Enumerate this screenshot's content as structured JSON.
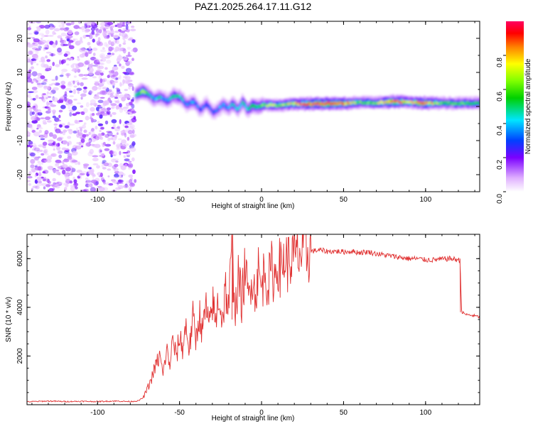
{
  "page_title": "PAZ1.2025.264.17.11.G12",
  "chart_data": [
    {
      "type": "heatmap",
      "title": "PAZ1.2025.264.17.11.G12",
      "xlabel": "Height of straight line (km)",
      "ylabel": "Frequency (Hz)",
      "xlim": [
        -143,
        133
      ],
      "ylim": [
        -25,
        25
      ],
      "xticks": [
        -100,
        -50,
        0,
        50,
        100
      ],
      "yticks": [
        -20,
        -10,
        0,
        10,
        20
      ],
      "noise_region_x": [
        -143,
        -77
      ],
      "ridge": {
        "x": [
          -77,
          -73,
          -70,
          -66,
          -62,
          -58,
          -54,
          -50,
          -46,
          -42,
          -38,
          -34,
          -30,
          -27,
          -24,
          -21,
          -18,
          -15,
          -12,
          -9,
          -6,
          -3,
          0,
          5,
          10,
          20,
          30,
          40,
          50,
          60,
          70,
          80,
          90,
          100,
          110,
          120,
          133
        ],
        "freq": [
          3.5,
          4.5,
          3.8,
          2.2,
          2.8,
          1.6,
          3.2,
          2.6,
          0.5,
          1.5,
          -1.0,
          0.8,
          -1.8,
          -0.8,
          0.6,
          -0.6,
          0.8,
          -1.0,
          1.4,
          -1.0,
          0.4,
          -0.2,
          0.3,
          0.5,
          0.4,
          0.8,
          0.8,
          0.9,
          0.9,
          1.2,
          1.0,
          1.4,
          1.3,
          1.0,
          1.0,
          0.9,
          1.0
        ],
        "amplitude": [
          0.5,
          0.7,
          0.45,
          0.4,
          0.45,
          0.35,
          0.5,
          0.45,
          0.35,
          0.4,
          0.3,
          0.35,
          0.3,
          0.35,
          0.4,
          0.35,
          0.45,
          0.4,
          0.5,
          0.5,
          0.55,
          0.5,
          0.6,
          0.7,
          0.6,
          0.8,
          0.9,
          1.0,
          0.85,
          0.6,
          0.65,
          0.95,
          0.7,
          0.9,
          0.55,
          0.6,
          0.55
        ]
      },
      "colorbar": {
        "label": "Normalized spectral amplitude",
        "ticks": [
          0.0,
          0.2,
          0.4,
          0.6,
          0.8
        ],
        "tick_labels": [
          "0.0",
          "0.2",
          "0.4",
          "0.6",
          "0.8"
        ],
        "range": [
          0,
          1
        ]
      }
    },
    {
      "type": "line",
      "xlabel": "Height of straight line (km)",
      "ylabel": "SNR (10 * v/v)",
      "xlim": [
        -143,
        133
      ],
      "ylim": [
        0,
        7000
      ],
      "xticks": [
        -100,
        -50,
        0,
        50,
        100
      ],
      "yticks": [
        2000,
        4000,
        6000
      ],
      "color": "#e03030",
      "series": [
        {
          "name": "SNR",
          "x": [
            -143,
            -130,
            -120,
            -110,
            -100,
            -90,
            -80,
            -75,
            -72,
            -70,
            -68,
            -66,
            -64,
            -62,
            -60,
            -58,
            -56,
            -54,
            -52,
            -50,
            -48,
            -46,
            -44,
            -42,
            -40,
            -38,
            -36,
            -34,
            -32,
            -30,
            -28,
            -26,
            -24,
            -22,
            -20,
            -18,
            -16,
            -14,
            -12,
            -10,
            -8,
            -6,
            -4,
            -2,
            0,
            2,
            4,
            6,
            8,
            10,
            12,
            14,
            16,
            18,
            20,
            22,
            24,
            26,
            28,
            30,
            35,
            40,
            45,
            50,
            55,
            60,
            65,
            70,
            75,
            80,
            85,
            90,
            95,
            100,
            105,
            110,
            115,
            120,
            121,
            122,
            125,
            130,
            133
          ],
          "y": [
            120,
            150,
            130,
            140,
            130,
            150,
            130,
            160,
            300,
            600,
            900,
            1300,
            1700,
            2000,
            1200,
            2300,
            1600,
            2700,
            1900,
            2800,
            2300,
            3300,
            2200,
            3600,
            2600,
            3800,
            2900,
            4100,
            3000,
            4300,
            3300,
            4600,
            3400,
            4800,
            3800,
            6800,
            3900,
            5200,
            4200,
            5700,
            4200,
            5600,
            4500,
            5500,
            4700,
            5700,
            4900,
            5600,
            5200,
            5900,
            5500,
            6100,
            5800,
            6000,
            6000,
            6200,
            6150,
            6200,
            6250,
            6300,
            6350,
            6300,
            6300,
            6280,
            6300,
            6250,
            6280,
            6200,
            6150,
            6100,
            6050,
            6000,
            6000,
            5950,
            5950,
            5980,
            6000,
            5950,
            5900,
            3800,
            3700,
            3650,
            3600
          ]
        }
      ]
    }
  ]
}
